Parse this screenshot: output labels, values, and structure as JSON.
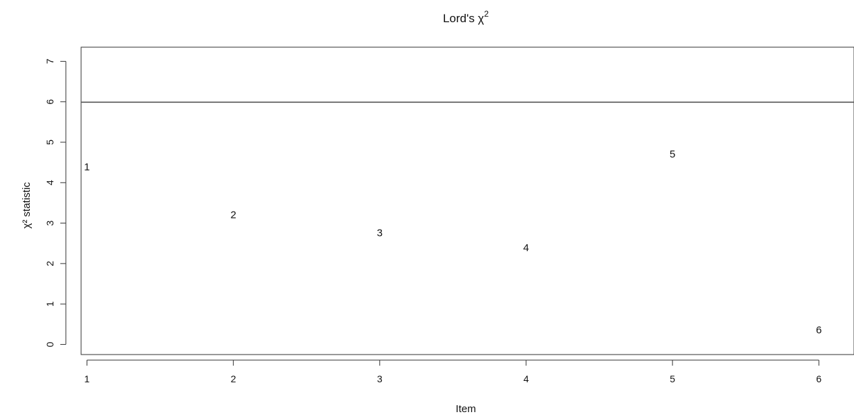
{
  "chart_data": {
    "type": "scatter",
    "title": "Lord's χ",
    "title_superscript": "2",
    "xlabel": "Item",
    "ylabel": "χ² statistic",
    "x_ticks": [
      1,
      2,
      3,
      4,
      5,
      6
    ],
    "y_ticks": [
      0,
      1,
      2,
      3,
      4,
      5,
      6,
      7
    ],
    "xlim": [
      0.96,
      6.24
    ],
    "ylim": [
      -0.25,
      7.35
    ],
    "points": [
      {
        "x": 1,
        "y": 4.38,
        "label": "1"
      },
      {
        "x": 2,
        "y": 3.2,
        "label": "2"
      },
      {
        "x": 3,
        "y": 2.75,
        "label": "3"
      },
      {
        "x": 4,
        "y": 2.38,
        "label": "4"
      },
      {
        "x": 5,
        "y": 4.7,
        "label": "5"
      },
      {
        "x": 6,
        "y": 0.35,
        "label": "6"
      }
    ],
    "reference_line_y": 5.99,
    "grid": false,
    "legend": "none",
    "colors": {
      "ink": "#111111",
      "line": "#555555",
      "box": "#333333"
    }
  }
}
